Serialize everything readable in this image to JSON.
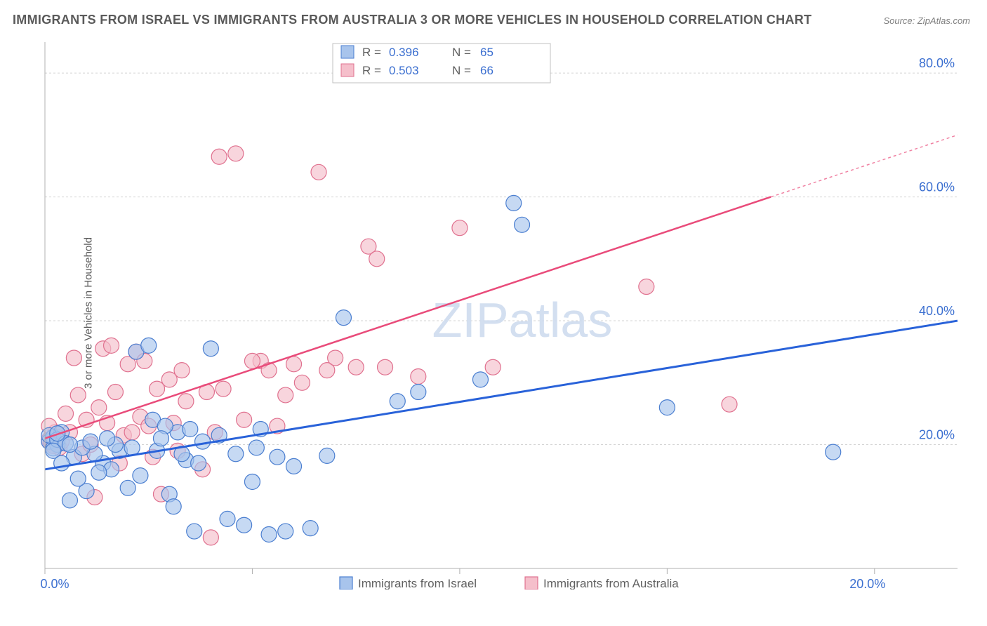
{
  "title": "IMMIGRANTS FROM ISRAEL VS IMMIGRANTS FROM AUSTRALIA 3 OR MORE VEHICLES IN HOUSEHOLD CORRELATION CHART",
  "source": "Source: ZipAtlas.com",
  "ylabel": "3 or more Vehicles in Household",
  "watermark": "ZIPatlas",
  "chart": {
    "type": "scatter_with_regression",
    "background_color": "#ffffff",
    "grid_color": "#d5d5d5",
    "axis_color": "#b0b0b0",
    "tick_label_color": "#3b6fd0",
    "xlim": [
      0,
      22
    ],
    "ylim": [
      0,
      85
    ],
    "x_ticks": [
      0,
      5,
      10,
      15,
      20
    ],
    "x_tick_labels": [
      "0.0%",
      "",
      "",
      "",
      "20.0%"
    ],
    "y_ticks": [
      20,
      40,
      60,
      80
    ],
    "y_tick_labels": [
      "20.0%",
      "40.0%",
      "60.0%",
      "80.0%"
    ],
    "marker_radius": 11,
    "series": [
      {
        "name": "Immigrants from Israel",
        "fill_color": "#a8c4ec",
        "stroke_color": "#4a7ed0",
        "R": "0.396",
        "N": "65",
        "regression": {
          "x1": 0,
          "y1": 16,
          "x2": 22,
          "y2": 40,
          "color": "#2962d9",
          "width": 3
        },
        "points": [
          [
            0.1,
            20.5
          ],
          [
            0.2,
            21.2
          ],
          [
            0.3,
            20.0
          ],
          [
            0.2,
            19.4
          ],
          [
            0.4,
            22.0
          ],
          [
            0.1,
            21.5
          ],
          [
            0.3,
            20.8
          ],
          [
            0.5,
            20.2
          ],
          [
            0.2,
            19.0
          ],
          [
            0.3,
            21.8
          ],
          [
            0.6,
            11.0
          ],
          [
            1.0,
            12.5
          ],
          [
            1.4,
            17.0
          ],
          [
            1.2,
            18.5
          ],
          [
            1.6,
            16.0
          ],
          [
            1.8,
            19.0
          ],
          [
            2.0,
            13.0
          ],
          [
            0.8,
            14.5
          ],
          [
            2.2,
            35.0
          ],
          [
            2.6,
            24.0
          ],
          [
            3.0,
            12.0
          ],
          [
            2.5,
            36.0
          ],
          [
            3.2,
            22.0
          ],
          [
            3.4,
            17.5
          ],
          [
            3.6,
            6.0
          ],
          [
            3.8,
            20.5
          ],
          [
            4.0,
            35.5
          ],
          [
            4.4,
            8.0
          ],
          [
            4.2,
            21.5
          ],
          [
            4.8,
            7.0
          ],
          [
            5.0,
            14.0
          ],
          [
            5.2,
            22.5
          ],
          [
            5.4,
            5.5
          ],
          [
            5.8,
            6.0
          ],
          [
            5.6,
            18.0
          ],
          [
            6.0,
            16.5
          ],
          [
            6.4,
            6.5
          ],
          [
            6.8,
            18.2
          ],
          [
            7.2,
            40.5
          ],
          [
            8.5,
            27.0
          ],
          [
            9.0,
            28.5
          ],
          [
            10.5,
            30.5
          ],
          [
            11.5,
            55.5
          ],
          [
            11.3,
            59.0
          ],
          [
            15.0,
            26.0
          ],
          [
            19.0,
            18.8
          ],
          [
            0.7,
            18.0
          ],
          [
            1.3,
            15.5
          ],
          [
            1.7,
            20.0
          ],
          [
            2.1,
            19.5
          ],
          [
            2.3,
            15.0
          ],
          [
            2.7,
            19.0
          ],
          [
            2.9,
            23.0
          ],
          [
            3.1,
            10.0
          ],
          [
            3.3,
            18.5
          ],
          [
            3.7,
            17.0
          ],
          [
            0.9,
            19.5
          ],
          [
            1.1,
            20.5
          ],
          [
            0.4,
            17.0
          ],
          [
            0.6,
            20.0
          ],
          [
            4.6,
            18.5
          ],
          [
            5.1,
            19.5
          ],
          [
            1.5,
            21.0
          ],
          [
            2.8,
            21.0
          ],
          [
            3.5,
            22.5
          ]
        ]
      },
      {
        "name": "Immigrants from Australia",
        "fill_color": "#f5bfcb",
        "stroke_color": "#e0718f",
        "R": "0.503",
        "N": "66",
        "regression": {
          "x1": 0,
          "y1": 21,
          "x2": 17.5,
          "y2": 60,
          "color": "#e94b7a",
          "width": 2.5
        },
        "regression_ext": {
          "x1": 17.5,
          "y1": 60,
          "x2": 22,
          "y2": 70
        },
        "points": [
          [
            0.1,
            20.8
          ],
          [
            0.2,
            21.0
          ],
          [
            0.3,
            21.5
          ],
          [
            0.15,
            20.2
          ],
          [
            0.25,
            22.0
          ],
          [
            0.35,
            19.5
          ],
          [
            0.1,
            23.0
          ],
          [
            0.2,
            19.8
          ],
          [
            0.3,
            21.2
          ],
          [
            0.4,
            20.5
          ],
          [
            0.5,
            25.0
          ],
          [
            0.8,
            28.0
          ],
          [
            1.0,
            24.0
          ],
          [
            1.2,
            11.5
          ],
          [
            1.4,
            35.5
          ],
          [
            1.6,
            36.0
          ],
          [
            1.8,
            17.0
          ],
          [
            2.0,
            33.0
          ],
          [
            2.2,
            35.0
          ],
          [
            2.4,
            33.5
          ],
          [
            2.6,
            18.0
          ],
          [
            3.0,
            30.5
          ],
          [
            2.8,
            12.0
          ],
          [
            3.2,
            19.0
          ],
          [
            3.4,
            27.0
          ],
          [
            3.8,
            16.0
          ],
          [
            4.0,
            5.0
          ],
          [
            4.2,
            66.5
          ],
          [
            4.6,
            67.0
          ],
          [
            5.2,
            33.5
          ],
          [
            5.4,
            32.0
          ],
          [
            5.8,
            28.0
          ],
          [
            6.0,
            33.0
          ],
          [
            6.2,
            30.0
          ],
          [
            6.6,
            64.0
          ],
          [
            7.5,
            32.5
          ],
          [
            7.8,
            52.0
          ],
          [
            8.0,
            50.0
          ],
          [
            8.2,
            32.5
          ],
          [
            9.0,
            31.0
          ],
          [
            10.0,
            55.0
          ],
          [
            10.8,
            32.5
          ],
          [
            14.5,
            45.5
          ],
          [
            16.5,
            26.5
          ],
          [
            0.6,
            22.0
          ],
          [
            0.9,
            18.5
          ],
          [
            1.1,
            20.0
          ],
          [
            1.3,
            26.0
          ],
          [
            1.5,
            23.5
          ],
          [
            1.7,
            28.5
          ],
          [
            1.9,
            21.5
          ],
          [
            2.1,
            22.0
          ],
          [
            2.3,
            24.5
          ],
          [
            2.5,
            23.0
          ],
          [
            2.7,
            29.0
          ],
          [
            3.1,
            23.5
          ],
          [
            3.3,
            32.0
          ],
          [
            3.9,
            28.5
          ],
          [
            4.1,
            22.0
          ],
          [
            4.3,
            29.0
          ],
          [
            4.8,
            24.0
          ],
          [
            0.7,
            34.0
          ],
          [
            5.0,
            33.5
          ],
          [
            6.8,
            32.0
          ],
          [
            5.6,
            23.0
          ],
          [
            7.0,
            34.0
          ]
        ]
      }
    ]
  },
  "corr_box": {
    "r_label": "R =",
    "n_label": "N =",
    "label_color": "#606060",
    "value_color": "#3b6fd0"
  },
  "legend_bottom": {
    "items": [
      "Immigrants from Israel",
      "Immigrants from Australia"
    ]
  }
}
